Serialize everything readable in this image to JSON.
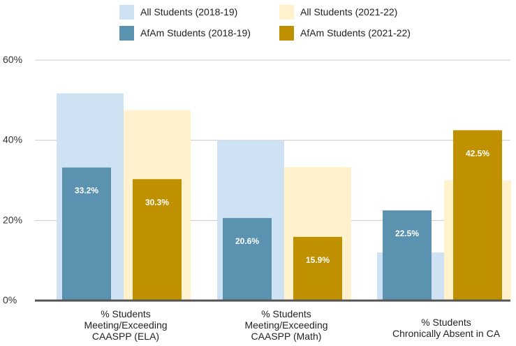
{
  "chart_data": {
    "type": "bar",
    "title": "",
    "xlabel": "",
    "ylabel": "",
    "ylim": [
      0,
      60
    ],
    "yticks": [
      {
        "value": 0,
        "label": "0%"
      },
      {
        "value": 20,
        "label": "20%"
      },
      {
        "value": 40,
        "label": "40%"
      },
      {
        "value": 60,
        "label": "60%"
      }
    ],
    "grid": true,
    "legend_position": "top",
    "categories": [
      {
        "lines": [
          "% Students",
          "Meeting/Exceeding",
          "CAASPP (ELA)"
        ]
      },
      {
        "lines": [
          "% Students",
          "Meeting/Exceeding",
          "CAASPP (Math)"
        ]
      },
      {
        "lines": [
          "% Students",
          "Chronically Absent in CA"
        ]
      }
    ],
    "series": [
      {
        "name": "All Students (2018-19)",
        "color": "#cfe2f3",
        "values": [
          51.7,
          40.0,
          12.0
        ],
        "labels": [
          "",
          "",
          ""
        ]
      },
      {
        "name": "All Students (2021-22)",
        "color": "#fff2cc",
        "values": [
          47.5,
          33.3,
          30.0
        ],
        "labels": [
          "",
          "",
          ""
        ]
      },
      {
        "name": "AfAm Students (2018-19)",
        "color": "#5b92b0",
        "values": [
          33.2,
          20.6,
          22.5
        ],
        "labels": [
          "33.2%",
          "20.6%",
          "22.5%"
        ]
      },
      {
        "name": "AfAm Students (2021-22)",
        "color": "#bf9000",
        "values": [
          30.3,
          15.9,
          42.5
        ],
        "labels": [
          "30.3%",
          "15.9%",
          "42.5%"
        ]
      }
    ],
    "legend_order": [
      0,
      1,
      2,
      3
    ]
  }
}
